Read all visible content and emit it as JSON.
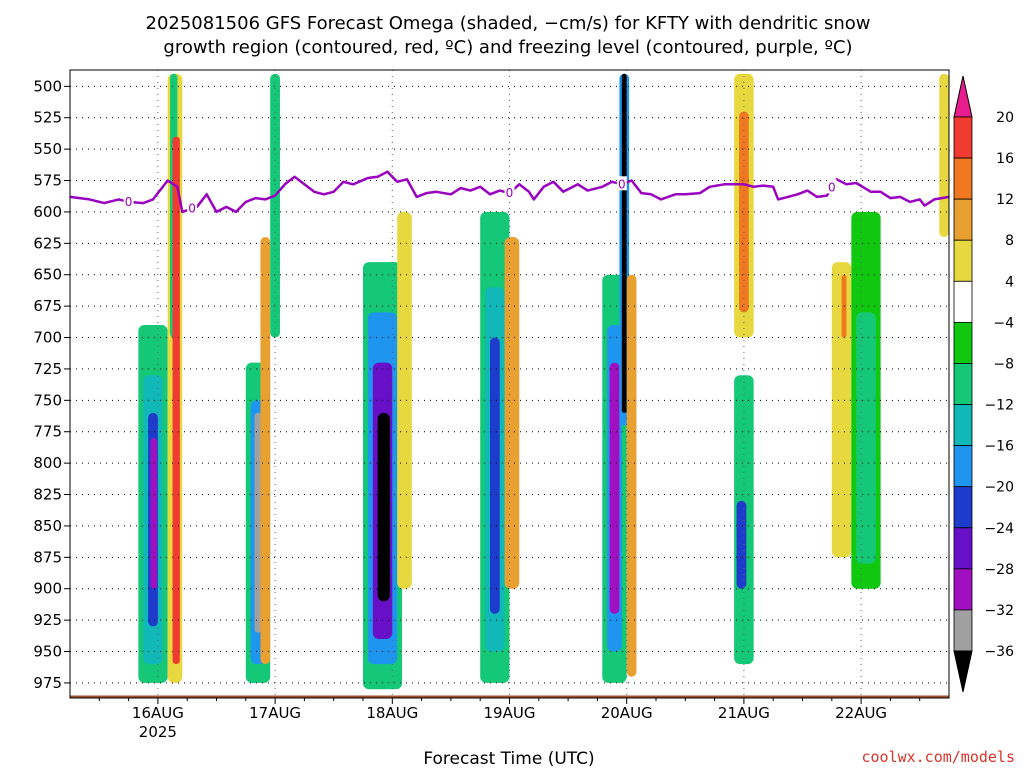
{
  "chart_data": {
    "type": "heatmap",
    "title_lines": [
      "2025081506 GFS Forecast Omega (shaded, −cm/s) for KFTY with dendritic snow",
      "growth region (contoured, red, ºC) and freezing level (contoured, purple, ºC)"
    ],
    "xlabel": "Forecast Time (UTC)",
    "credit": "coolwx.com/models",
    "x_ticks": [
      {
        "label": "16AUG",
        "sublabel": "2025",
        "t": 0
      },
      {
        "label": "17AUG",
        "t": 24
      },
      {
        "label": "18AUG",
        "t": 48
      },
      {
        "label": "19AUG",
        "t": 72
      },
      {
        "label": "20AUG",
        "t": 96
      },
      {
        "label": "21AUG",
        "t": 120
      },
      {
        "label": "22AUG",
        "t": 144
      }
    ],
    "x_range_hours": [
      -18,
      162
    ],
    "y_axis": {
      "label": "",
      "unit": "hPa",
      "range": [
        987,
        487
      ],
      "grid": true,
      "ticks": [
        500,
        525,
        550,
        575,
        600,
        625,
        650,
        675,
        700,
        725,
        750,
        775,
        800,
        825,
        850,
        875,
        900,
        925,
        950,
        975
      ]
    },
    "colorbar": {
      "labels": [
        "20",
        "16",
        "12",
        "8",
        "4",
        "−4",
        "−8",
        "−12",
        "−16",
        "−20",
        "−24",
        "−28",
        "−32",
        "−36"
      ],
      "colors": [
        "#e81c8c",
        "#f03c30",
        "#f07820",
        "#e8a030",
        "#e8d840",
        "#ffffff",
        "#10c810",
        "#14c878",
        "#10b8b8",
        "#1e96f0",
        "#1e3ccc",
        "#6810c8",
        "#a010c0",
        "#a0a0a0",
        "#000000"
      ]
    },
    "freezing_level": {
      "color": "#9a00c0",
      "label": "0",
      "label_times": [
        -6,
        7,
        72,
        95,
        138
      ],
      "points": [
        [
          -18,
          588
        ],
        [
          -14,
          590
        ],
        [
          -11,
          593
        ],
        [
          -8,
          590
        ],
        [
          -6,
          592
        ],
        [
          -3,
          593
        ],
        [
          -1,
          590
        ],
        [
          2,
          575
        ],
        [
          4,
          580
        ],
        [
          5,
          600
        ],
        [
          8,
          596
        ],
        [
          10,
          586
        ],
        [
          12,
          600
        ],
        [
          14,
          596
        ],
        [
          16,
          600
        ],
        [
          18,
          592
        ],
        [
          20,
          589
        ],
        [
          22,
          590
        ],
        [
          24,
          587
        ],
        [
          26,
          578
        ],
        [
          28,
          572
        ],
        [
          30,
          578
        ],
        [
          32,
          584
        ],
        [
          34,
          586
        ],
        [
          36,
          584
        ],
        [
          38,
          576
        ],
        [
          40,
          578
        ],
        [
          43,
          573
        ],
        [
          45,
          572
        ],
        [
          47,
          568
        ],
        [
          49,
          576
        ],
        [
          51,
          574
        ],
        [
          53,
          588
        ],
        [
          55,
          585
        ],
        [
          57,
          584
        ],
        [
          60,
          586
        ],
        [
          62,
          581
        ],
        [
          64,
          583
        ],
        [
          66,
          580
        ],
        [
          68,
          586
        ],
        [
          70,
          583
        ],
        [
          72,
          585
        ],
        [
          74,
          578
        ],
        [
          76,
          584
        ],
        [
          77,
          590
        ],
        [
          79,
          580
        ],
        [
          81,
          576
        ],
        [
          83,
          584
        ],
        [
          86,
          578
        ],
        [
          88,
          583
        ],
        [
          91,
          580
        ],
        [
          93,
          576
        ],
        [
          95,
          578
        ],
        [
          97,
          575
        ],
        [
          99,
          585
        ],
        [
          101,
          586
        ],
        [
          103,
          590
        ],
        [
          106,
          586
        ],
        [
          108,
          586
        ],
        [
          111,
          585
        ],
        [
          113,
          580
        ],
        [
          116,
          578
        ],
        [
          118,
          578
        ],
        [
          120,
          578
        ],
        [
          122,
          580
        ],
        [
          124,
          579
        ],
        [
          126,
          580
        ],
        [
          127,
          590
        ],
        [
          129,
          588
        ],
        [
          131,
          586
        ],
        [
          133,
          583
        ],
        [
          135,
          588
        ],
        [
          137,
          587
        ],
        [
          139,
          574
        ],
        [
          141,
          578
        ],
        [
          143,
          577
        ],
        [
          146,
          584
        ],
        [
          148,
          584
        ],
        [
          150,
          589
        ],
        [
          152,
          588
        ],
        [
          154,
          592
        ],
        [
          156,
          590
        ],
        [
          157,
          595
        ],
        [
          159,
          590
        ],
        [
          162,
          588
        ]
      ]
    },
    "ground": {
      "color": "#a0522d",
      "level_hpa": 985
    },
    "omega_cells": [
      {
        "t0": -4,
        "t1": 2,
        "p0": 690,
        "p1": 975,
        "v": -10
      },
      {
        "t0": -3,
        "t1": 1,
        "p0": 730,
        "p1": 960,
        "v": -14
      },
      {
        "t0": -2,
        "t1": 0,
        "p0": 760,
        "p1": 930,
        "v": -22
      },
      {
        "t0": -1.5,
        "t1": -0.2,
        "p0": 780,
        "p1": 900,
        "v": -30
      },
      {
        "t0": 2,
        "t1": 5,
        "p0": 490,
        "p1": 975,
        "v": 6
      },
      {
        "t0": 2.5,
        "t1": 4,
        "p0": 490,
        "p1": 700,
        "v": -10
      },
      {
        "t0": 3,
        "t1": 4.5,
        "p0": 540,
        "p1": 960,
        "v": 18
      },
      {
        "t0": 18,
        "t1": 23,
        "p0": 720,
        "p1": 975,
        "v": -10
      },
      {
        "t0": 19,
        "t1": 22,
        "p0": 750,
        "p1": 960,
        "v": -18
      },
      {
        "t0": 19.8,
        "t1": 21.2,
        "p0": 760,
        "p1": 935,
        "v": -34
      },
      {
        "t0": 21,
        "t1": 23,
        "p0": 620,
        "p1": 960,
        "v": 8
      },
      {
        "t0": 23,
        "t1": 25,
        "p0": 490,
        "p1": 700,
        "v": -10
      },
      {
        "t0": 42,
        "t1": 50,
        "p0": 640,
        "p1": 980,
        "v": -10
      },
      {
        "t0": 43,
        "t1": 49,
        "p0": 680,
        "p1": 960,
        "v": -16
      },
      {
        "t0": 44,
        "t1": 48,
        "p0": 720,
        "p1": 940,
        "v": -26
      },
      {
        "t0": 45,
        "t1": 47.5,
        "p0": 760,
        "p1": 910,
        "v": -36
      },
      {
        "t0": 49,
        "t1": 52,
        "p0": 600,
        "p1": 900,
        "v": 6
      },
      {
        "t0": 66,
        "t1": 72,
        "p0": 600,
        "p1": 975,
        "v": -10
      },
      {
        "t0": 67,
        "t1": 71,
        "p0": 660,
        "p1": 950,
        "v": -14
      },
      {
        "t0": 68,
        "t1": 70,
        "p0": 700,
        "p1": 920,
        "v": -22
      },
      {
        "t0": 71,
        "t1": 74,
        "p0": 620,
        "p1": 900,
        "v": 8
      },
      {
        "t0": 91,
        "t1": 96,
        "p0": 650,
        "p1": 975,
        "v": -10
      },
      {
        "t0": 92,
        "t1": 95,
        "p0": 690,
        "p1": 950,
        "v": -18
      },
      {
        "t0": 92.5,
        "t1": 94.5,
        "p0": 720,
        "p1": 920,
        "v": -28
      },
      {
        "t0": 94.5,
        "t1": 96.5,
        "p0": 490,
        "p1": 770,
        "v": -18
      },
      {
        "t0": 95,
        "t1": 96,
        "p0": 490,
        "p1": 760,
        "v": -36
      },
      {
        "t0": 96,
        "t1": 98,
        "p0": 650,
        "p1": 970,
        "v": 10
      },
      {
        "t0": 118,
        "t1": 122,
        "p0": 490,
        "p1": 700,
        "v": 6
      },
      {
        "t0": 119,
        "t1": 121,
        "p0": 520,
        "p1": 680,
        "v": 12
      },
      {
        "t0": 118,
        "t1": 122,
        "p0": 730,
        "p1": 960,
        "v": -10
      },
      {
        "t0": 118.5,
        "t1": 120.5,
        "p0": 830,
        "p1": 900,
        "v": -22
      },
      {
        "t0": 138,
        "t1": 142,
        "p0": 640,
        "p1": 875,
        "v": 6
      },
      {
        "t0": 140,
        "t1": 141,
        "p0": 650,
        "p1": 700,
        "v": 12
      },
      {
        "t0": 142,
        "t1": 148,
        "p0": 600,
        "p1": 900,
        "v": -6
      },
      {
        "t0": 143,
        "t1": 147,
        "p0": 680,
        "p1": 880,
        "v": -10
      },
      {
        "t0": 160,
        "t1": 162,
        "p0": 490,
        "p1": 620,
        "v": 6
      }
    ]
  }
}
